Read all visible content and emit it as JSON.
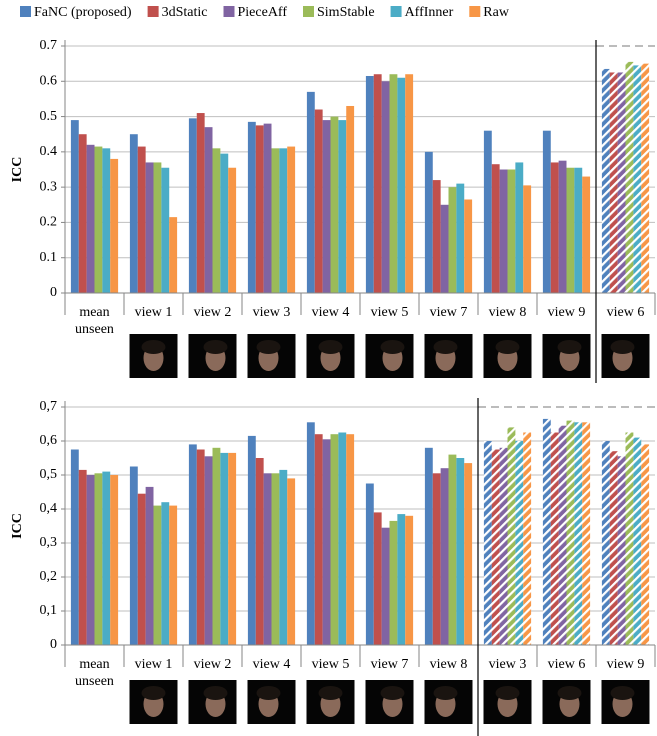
{
  "chart_data": [
    {
      "type": "bar",
      "y_label": "ICC",
      "ylim": [
        0,
        0.7
      ],
      "yticks": [
        0,
        0.1,
        0.2,
        0.3,
        0.4,
        0.5,
        0.6,
        0.7
      ],
      "grid": true,
      "legend": "top",
      "hatched_from": 9,
      "categories": [
        "mean unseen",
        "view 1",
        "view 2",
        "view 3",
        "view 4",
        "view 5",
        "view 7",
        "view 8",
        "view 9",
        "view 6"
      ],
      "series": [
        {
          "name": "FaNC (proposed)",
          "color": "#4f81bd",
          "values": [
            0.49,
            0.45,
            0.495,
            0.485,
            0.57,
            0.615,
            0.4,
            0.46,
            0.46,
            0.635
          ]
        },
        {
          "name": "3dStatic",
          "color": "#c0504d",
          "values": [
            0.45,
            0.415,
            0.51,
            0.475,
            0.52,
            0.62,
            0.32,
            0.365,
            0.37,
            0.625
          ]
        },
        {
          "name": "PieceAff",
          "color": "#8064a2",
          "values": [
            0.42,
            0.37,
            0.47,
            0.48,
            0.49,
            0.6,
            0.25,
            0.35,
            0.375,
            0.625
          ]
        },
        {
          "name": "SimStable",
          "color": "#9bbb59",
          "values": [
            0.415,
            0.37,
            0.41,
            0.41,
            0.5,
            0.62,
            0.3,
            0.35,
            0.355,
            0.655
          ]
        },
        {
          "name": "AffInner",
          "color": "#4bacc6",
          "values": [
            0.41,
            0.355,
            0.395,
            0.41,
            0.49,
            0.61,
            0.31,
            0.37,
            0.355,
            0.645
          ]
        },
        {
          "name": "Raw",
          "color": "#f79646",
          "values": [
            0.38,
            0.215,
            0.355,
            0.415,
            0.53,
            0.62,
            0.265,
            0.305,
            0.33,
            0.65
          ]
        }
      ]
    },
    {
      "type": "bar",
      "y_label": "ICC",
      "ylim": [
        0,
        0.7
      ],
      "yticks": [
        0,
        {
          "value": 0.1,
          "label": "0,1"
        },
        {
          "value": 0.2,
          "label": "0,2"
        },
        {
          "value": 0.3,
          "label": "0,3"
        },
        {
          "value": 0.4,
          "label": "0,4"
        },
        {
          "value": 0.5,
          "label": "0,5"
        },
        {
          "value": 0.6,
          "label": "0,6"
        },
        {
          "value": 0.7,
          "label": "0,7"
        }
      ],
      "grid": true,
      "hatched_from": 7,
      "categories": [
        "mean unseen",
        "view 1",
        "view 2",
        "view 4",
        "view 5",
        "view 7",
        "view 8",
        "view 3",
        "view 6",
        "view 9"
      ],
      "series": [
        {
          "color": "#4f81bd",
          "values": [
            0.575,
            0.525,
            0.59,
            0.615,
            0.655,
            0.475,
            0.58,
            0.6,
            0.665,
            0.6
          ]
        },
        {
          "color": "#c0504d",
          "values": [
            0.515,
            0.445,
            0.575,
            0.55,
            0.62,
            0.39,
            0.505,
            0.575,
            0.625,
            0.57
          ]
        },
        {
          "color": "#8064a2",
          "values": [
            0.5,
            0.465,
            0.555,
            0.505,
            0.605,
            0.345,
            0.52,
            0.58,
            0.645,
            0.555
          ]
        },
        {
          "color": "#9bbb59",
          "values": [
            0.505,
            0.41,
            0.58,
            0.505,
            0.62,
            0.365,
            0.56,
            0.64,
            0.66,
            0.625
          ]
        },
        {
          "color": "#4bacc6",
          "values": [
            0.51,
            0.42,
            0.565,
            0.515,
            0.625,
            0.385,
            0.55,
            0.6,
            0.655,
            0.61
          ]
        },
        {
          "color": "#f79646",
          "values": [
            0.5,
            0.41,
            0.565,
            0.49,
            0.62,
            0.38,
            0.535,
            0.625,
            0.655,
            0.59
          ]
        }
      ]
    }
  ]
}
